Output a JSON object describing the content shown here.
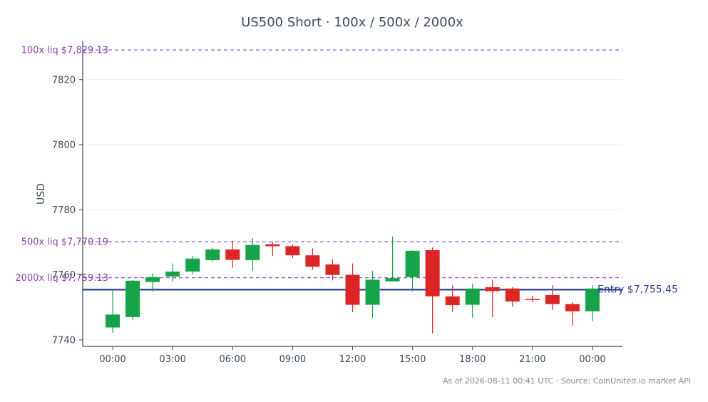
{
  "chart_data": {
    "type": "candlestick",
    "title": "US500 Short · 100x / 500x / 2000x",
    "xlabel": "",
    "ylabel": "USD",
    "ylim": [
      7738,
      7832
    ],
    "grid": true,
    "y_ticks": [
      7740,
      7760,
      7780,
      7800,
      7820
    ],
    "x_ticks": [
      "00:00",
      "03:00",
      "06:00",
      "09:00",
      "12:00",
      "15:00",
      "18:00",
      "21:00",
      "00:00"
    ],
    "x_tick_hours": [
      0,
      3,
      6,
      9,
      12,
      15,
      18,
      21,
      24
    ],
    "candles": [
      {
        "hour": 0,
        "open": 7743.8,
        "high": 7755.2,
        "low": 7742.2,
        "close": 7747.8
      },
      {
        "hour": 1,
        "open": 7747.0,
        "high": 7758.5,
        "low": 7746.2,
        "close": 7758.2
      },
      {
        "hour": 2,
        "open": 7757.8,
        "high": 7760.5,
        "low": 7754.8,
        "close": 7759.3
      },
      {
        "hour": 3,
        "open": 7759.5,
        "high": 7763.5,
        "low": 7758.0,
        "close": 7761.0
      },
      {
        "hour": 4,
        "open": 7761.0,
        "high": 7765.8,
        "low": 7760.2,
        "close": 7765.0
      },
      {
        "hour": 5,
        "open": 7764.5,
        "high": 7768.3,
        "low": 7764.0,
        "close": 7767.8
      },
      {
        "hour": 6,
        "open": 7767.8,
        "high": 7770.4,
        "low": 7762.2,
        "close": 7764.6
      },
      {
        "hour": 7,
        "open": 7764.5,
        "high": 7771.3,
        "low": 7761.2,
        "close": 7769.2
      },
      {
        "hour": 8,
        "open": 7769.4,
        "high": 7770.2,
        "low": 7765.8,
        "close": 7768.8
      },
      {
        "hour": 9,
        "open": 7768.8,
        "high": 7769.4,
        "low": 7765.2,
        "close": 7766.0
      },
      {
        "hour": 10,
        "open": 7766.0,
        "high": 7768.2,
        "low": 7761.5,
        "close": 7762.5
      },
      {
        "hour": 11,
        "open": 7763.2,
        "high": 7764.8,
        "low": 7758.3,
        "close": 7760.0
      },
      {
        "hour": 12,
        "open": 7760.0,
        "high": 7763.5,
        "low": 7748.5,
        "close": 7750.8
      },
      {
        "hour": 13,
        "open": 7750.8,
        "high": 7761.2,
        "low": 7746.8,
        "close": 7758.5
      },
      {
        "hour": 14,
        "open": 7758.0,
        "high": 7771.8,
        "low": 7758.0,
        "close": 7759.0
      },
      {
        "hour": 15,
        "open": 7759.3,
        "high": 7767.5,
        "low": 7755.0,
        "close": 7767.4
      },
      {
        "hour": 16,
        "open": 7767.6,
        "high": 7768.4,
        "low": 7742.0,
        "close": 7753.4
      },
      {
        "hour": 17,
        "open": 7753.4,
        "high": 7756.8,
        "low": 7748.6,
        "close": 7750.7
      },
      {
        "hour": 18,
        "open": 7750.8,
        "high": 7757.3,
        "low": 7746.8,
        "close": 7755.8
      },
      {
        "hour": 19,
        "open": 7756.2,
        "high": 7758.5,
        "low": 7747.0,
        "close": 7755.0
      },
      {
        "hour": 20,
        "open": 7755.8,
        "high": 7756.2,
        "low": 7750.2,
        "close": 7751.8
      },
      {
        "hour": 21,
        "open": 7752.6,
        "high": 7753.6,
        "low": 7751.6,
        "close": 7752.3
      },
      {
        "hour": 22,
        "open": 7753.8,
        "high": 7756.8,
        "low": 7749.2,
        "close": 7751.0
      },
      {
        "hour": 23,
        "open": 7751.0,
        "high": 7751.6,
        "low": 7744.3,
        "close": 7748.8
      },
      {
        "hour": 24,
        "open": 7748.8,
        "high": 7756.8,
        "low": 7745.8,
        "close": 7755.8
      }
    ],
    "reference_lines": [
      {
        "label": "100x liq $7,829.13",
        "value": 7829.13,
        "style": "dashed",
        "color": "#9b59c6"
      },
      {
        "label": "500x liq $7,770.19",
        "value": 7770.19,
        "style": "dashed",
        "color": "#9b59c6"
      },
      {
        "label": "2000x liq $7,759.13",
        "value": 7759.13,
        "style": "dashed",
        "color": "#9b59c6"
      },
      {
        "label": "Entry $7,755.45",
        "value": 7755.45,
        "style": "solid",
        "color": "#2c3e91"
      }
    ],
    "colors": {
      "up": "#16a34a",
      "down": "#dc2626",
      "liq_label": "#8e44ad",
      "entry": "#2c3e91",
      "axis": "#34495e",
      "grid": "#ebebeb",
      "title": "#3d4a5c",
      "tick_label": "#3d4a5c"
    }
  },
  "footer": {
    "note": "As of 2026-08-11 00:41 UTC · Source: CoinUnited.io market API"
  }
}
